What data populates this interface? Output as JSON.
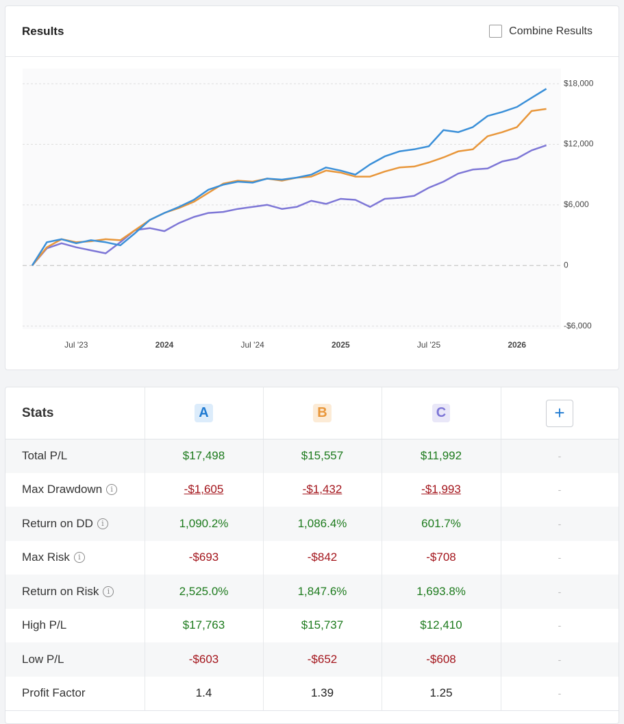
{
  "header": {
    "title": "Results",
    "combine_label": "Combine Results",
    "combine_checked": false
  },
  "chart_data": {
    "type": "line",
    "x": [
      "2023-04",
      "2023-05",
      "2023-06",
      "2023-07",
      "2023-08",
      "2023-09",
      "2023-10",
      "2023-11",
      "2023-12",
      "2024-01",
      "2024-02",
      "2024-03",
      "2024-04",
      "2024-05",
      "2024-06",
      "2024-07",
      "2024-08",
      "2024-09",
      "2024-10",
      "2024-11",
      "2024-12",
      "2025-01",
      "2025-02",
      "2025-03",
      "2025-04",
      "2025-05",
      "2025-06",
      "2025-07",
      "2025-08",
      "2025-09",
      "2025-10",
      "2025-11",
      "2025-12",
      "2026-01",
      "2026-02",
      "2026-03"
    ],
    "series": [
      {
        "name": "A",
        "color": "#3a8fd8",
        "values": [
          0,
          2300,
          2600,
          2200,
          2500,
          2300,
          2000,
          3200,
          4500,
          5200,
          5800,
          6500,
          7500,
          8000,
          8300,
          8200,
          8600,
          8500,
          8700,
          9000,
          9700,
          9400,
          9000,
          10000,
          10800,
          11300,
          11500,
          11800,
          13400,
          13200,
          13700,
          14800,
          15200,
          15700,
          16600,
          17500
        ]
      },
      {
        "name": "B",
        "color": "#e8963a",
        "values": [
          0,
          1800,
          2600,
          2300,
          2400,
          2600,
          2500,
          3500,
          4500,
          5200,
          5700,
          6300,
          7200,
          8100,
          8400,
          8300,
          8600,
          8400,
          8700,
          8800,
          9400,
          9200,
          8800,
          8800,
          9300,
          9700,
          9800,
          10200,
          10700,
          11300,
          11500,
          12800,
          13200,
          13700,
          15300,
          15500
        ]
      },
      {
        "name": "C",
        "color": "#7d76d6",
        "values": [
          0,
          1700,
          2200,
          1800,
          1500,
          1200,
          2300,
          3500,
          3700,
          3400,
          4200,
          4800,
          5200,
          5300,
          5600,
          5800,
          6000,
          5600,
          5800,
          6400,
          6100,
          6600,
          6500,
          5800,
          6600,
          6700,
          6900,
          7700,
          8300,
          9100,
          9500,
          9600,
          10300,
          10600,
          11400,
          11900
        ]
      }
    ],
    "xlim": [
      "2023-04",
      "2026-04"
    ],
    "xticks": [
      {
        "value": "2023-07",
        "label": "Jul '23"
      },
      {
        "value": "2024-01",
        "label": "2024"
      },
      {
        "value": "2024-07",
        "label": "Jul '24"
      },
      {
        "value": "2025-01",
        "label": "2025"
      },
      {
        "value": "2025-07",
        "label": "Jul '25"
      },
      {
        "value": "2026-01",
        "label": "2026"
      }
    ],
    "ylim": [
      -6300,
      19500
    ],
    "yticks": [
      {
        "value": -6000,
        "label": "-$6,000"
      },
      0,
      {
        "value": 6000,
        "label": "$6,000"
      },
      {
        "value": 12000,
        "label": "$12,000"
      },
      {
        "value": 18000,
        "label": "$18,000"
      }
    ],
    "grid": true
  },
  "table": {
    "title": "Stats",
    "add_label": "+",
    "columns": [
      {
        "label": "A",
        "color": "#1f7ad1",
        "background": "#dcecfb"
      },
      {
        "label": "B",
        "color": "#e8963a",
        "background": "#fcebd6"
      },
      {
        "label": "C",
        "color": "#7d76d6",
        "background": "#e9e7f8"
      }
    ],
    "rows": [
      {
        "label": "Total P/L",
        "info": false,
        "tone": "positive",
        "values": [
          "$17,498",
          "$15,557",
          "$11,992",
          "-"
        ]
      },
      {
        "label": "Max Drawdown",
        "info": true,
        "tone": "negative-link",
        "values": [
          "-$1,605",
          "-$1,432",
          "-$1,993",
          "-"
        ]
      },
      {
        "label": "Return on DD",
        "info": true,
        "tone": "positive",
        "values": [
          "1,090.2%",
          "1,086.4%",
          "601.7%",
          "-"
        ]
      },
      {
        "label": "Max Risk",
        "info": true,
        "tone": "negative",
        "values": [
          "-$693",
          "-$842",
          "-$708",
          "-"
        ]
      },
      {
        "label": "Return on Risk",
        "info": true,
        "tone": "positive",
        "values": [
          "2,525.0%",
          "1,847.6%",
          "1,693.8%",
          "-"
        ]
      },
      {
        "label": "High P/L",
        "info": false,
        "tone": "positive",
        "values": [
          "$17,763",
          "$15,737",
          "$12,410",
          "-"
        ]
      },
      {
        "label": "Low P/L",
        "info": false,
        "tone": "negative",
        "values": [
          "-$603",
          "-$652",
          "-$608",
          "-"
        ]
      },
      {
        "label": "Profit Factor",
        "info": false,
        "tone": "neutral",
        "values": [
          "1.4",
          "1.39",
          "1.25",
          "-"
        ]
      }
    ]
  }
}
